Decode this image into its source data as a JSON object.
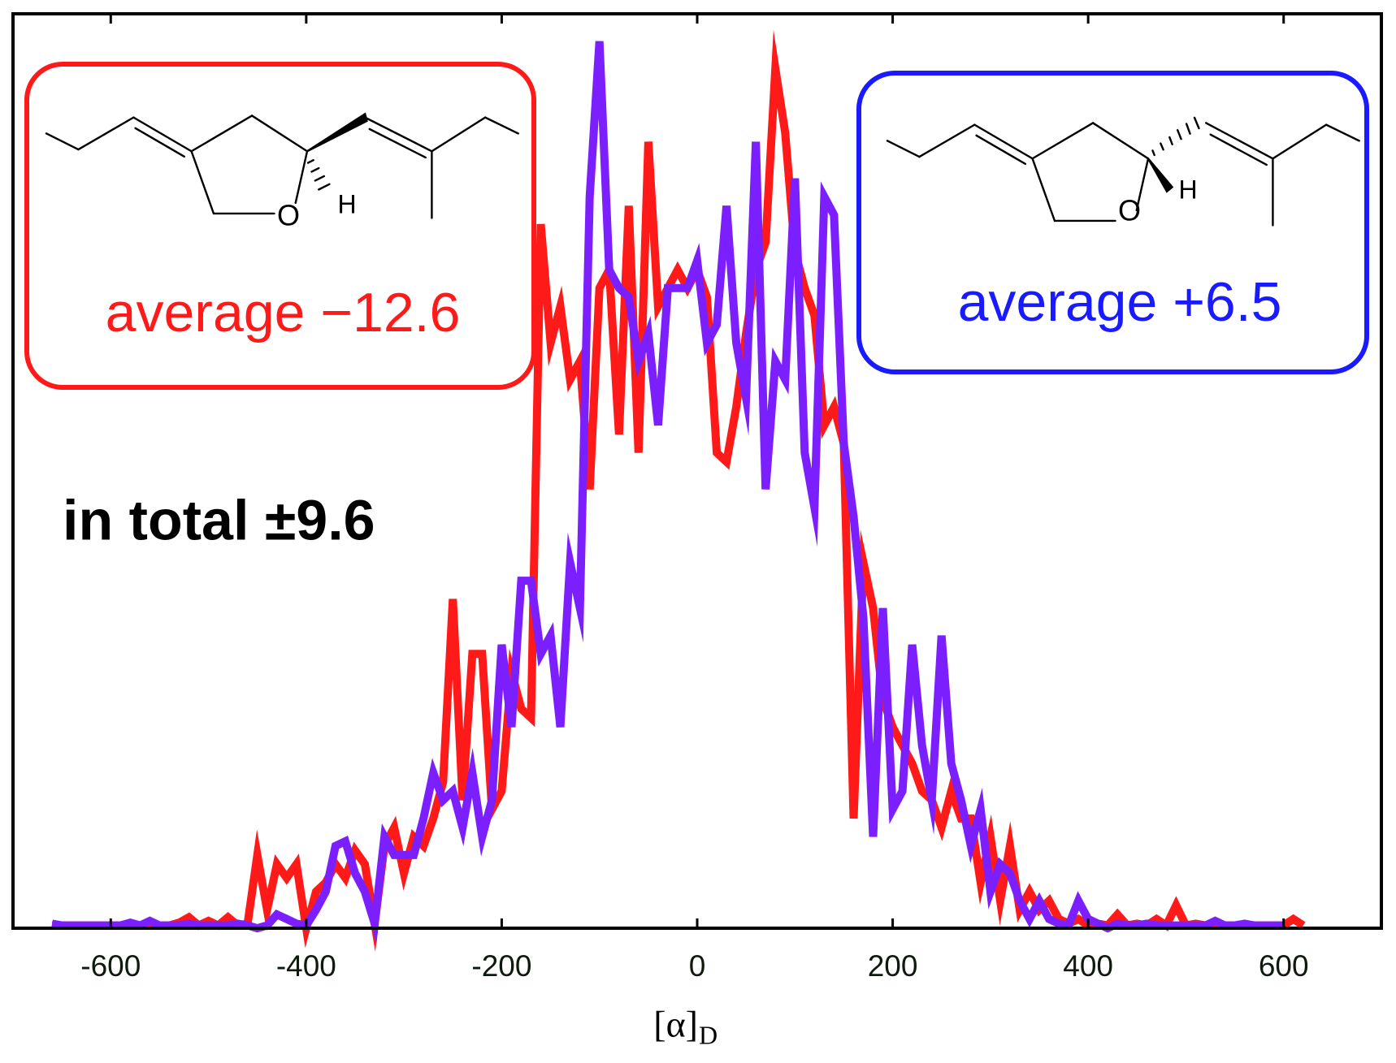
{
  "chart_data": {
    "type": "line",
    "xlabel": "[α]",
    "xlabel_subscript": "D",
    "xlim": [
      -700,
      700
    ],
    "xticks": [
      -600,
      -400,
      -200,
      0,
      200,
      400,
      600
    ],
    "ylim": [
      0,
      100
    ],
    "x": [
      -660,
      -650,
      -640,
      -630,
      -620,
      -610,
      -600,
      -590,
      -580,
      -570,
      -560,
      -550,
      -540,
      -530,
      -520,
      -510,
      -500,
      -490,
      -480,
      -470,
      -460,
      -450,
      -440,
      -430,
      -420,
      -410,
      -400,
      -390,
      -380,
      -370,
      -360,
      -350,
      -340,
      -330,
      -320,
      -310,
      -300,
      -290,
      -280,
      -270,
      -260,
      -250,
      -240,
      -230,
      -220,
      -210,
      -200,
      -190,
      -180,
      -170,
      -160,
      -150,
      -140,
      -130,
      -120,
      -110,
      -100,
      -90,
      -80,
      -70,
      -60,
      -50,
      -40,
      -30,
      -20,
      -10,
      0,
      10,
      20,
      30,
      40,
      50,
      60,
      70,
      80,
      90,
      100,
      110,
      120,
      130,
      140,
      150,
      160,
      170,
      180,
      190,
      200,
      210,
      220,
      230,
      240,
      250,
      260,
      270,
      280,
      290,
      300,
      310,
      320,
      330,
      340,
      350,
      360,
      370,
      380,
      390,
      400,
      410,
      420,
      430,
      440,
      450,
      460,
      470,
      480,
      490,
      500,
      510,
      520,
      530,
      540,
      550,
      560,
      570,
      580,
      590,
      600,
      610,
      620
    ],
    "series": [
      {
        "color": "#ff1a1a",
        "values": [
          0.3,
          0.3,
          0.3,
          0.3,
          0.3,
          0.3,
          0.3,
          0.3,
          0.3,
          0.3,
          0.5,
          0.3,
          0.3,
          0.6,
          1.2,
          0.3,
          0.8,
          0.3,
          1.2,
          0.3,
          0.5,
          8,
          2,
          7,
          5.5,
          7,
          0,
          4,
          5,
          7,
          5.5,
          8.5,
          7,
          0.5,
          9,
          11,
          6,
          10,
          9,
          12,
          16,
          36,
          14,
          30,
          30,
          13,
          15,
          28,
          24,
          23,
          77,
          64,
          68,
          60,
          62,
          48,
          70,
          72,
          54,
          79,
          52,
          86,
          68,
          70,
          72,
          70,
          72,
          69,
          52,
          51,
          57,
          65,
          72,
          75,
          94,
          87,
          74,
          70,
          67,
          55,
          57,
          53,
          12,
          40,
          35,
          25,
          22,
          20,
          18,
          15,
          14,
          11,
          15,
          12,
          12,
          5,
          10,
          3,
          9,
          2,
          4,
          2,
          3,
          1,
          0.5,
          1,
          0.3,
          0.5,
          0.3,
          1.5,
          0.3,
          0.5,
          0.3,
          1,
          0.3,
          2.5,
          0.3,
          0.5,
          0.3,
          0.5,
          0.3,
          0.3,
          0.3,
          0.3,
          0.3,
          0.3,
          0.3,
          1,
          0.3
        ]
      },
      {
        "color": "#7b1fff",
        "values": [
          0.5,
          0.3,
          0.3,
          0.3,
          0.3,
          0.3,
          0.3,
          0.3,
          0.6,
          0.3,
          0.8,
          0.3,
          0.3,
          0.3,
          0.5,
          0.3,
          0.3,
          0.3,
          0.3,
          0.5,
          0.3,
          0,
          0.3,
          1.5,
          1,
          0.5,
          0.3,
          2,
          4,
          9,
          9.5,
          6,
          4,
          0.5,
          10,
          8,
          8,
          8,
          12,
          17,
          14,
          15,
          11,
          17,
          10,
          14,
          31,
          22,
          38,
          38,
          30,
          32,
          22,
          40,
          35,
          80,
          97,
          72,
          70,
          69,
          62,
          65,
          55,
          70,
          70,
          70,
          73,
          64,
          66,
          79,
          64,
          58,
          86,
          48,
          62,
          60,
          82,
          52,
          46,
          80,
          78,
          53,
          45,
          34,
          10,
          35,
          13,
          15,
          31,
          20,
          14,
          32,
          18,
          14,
          9,
          13,
          4,
          7,
          6,
          3,
          1,
          3,
          1,
          0.5,
          0.3,
          3,
          1,
          0.5,
          0,
          0.5,
          0.3,
          0.3,
          0.5,
          0.3,
          0.3,
          0.3,
          0.3,
          0.3,
          0.3,
          0.8,
          0.3,
          0.3,
          0.5,
          0.3,
          0.3,
          0.3,
          0.3,
          null,
          null
        ]
      }
    ],
    "annotations": [
      {
        "text": "average −12.6",
        "color": "#ff1a1a"
      },
      {
        "text": "average +6.5",
        "color": "#1a1aff"
      },
      {
        "text": "in total ±9.6",
        "color": "#000000"
      }
    ],
    "structures": [
      {
        "atoms": [
          "O",
          "H"
        ]
      },
      {
        "atoms": [
          "O",
          "H"
        ]
      }
    ]
  }
}
